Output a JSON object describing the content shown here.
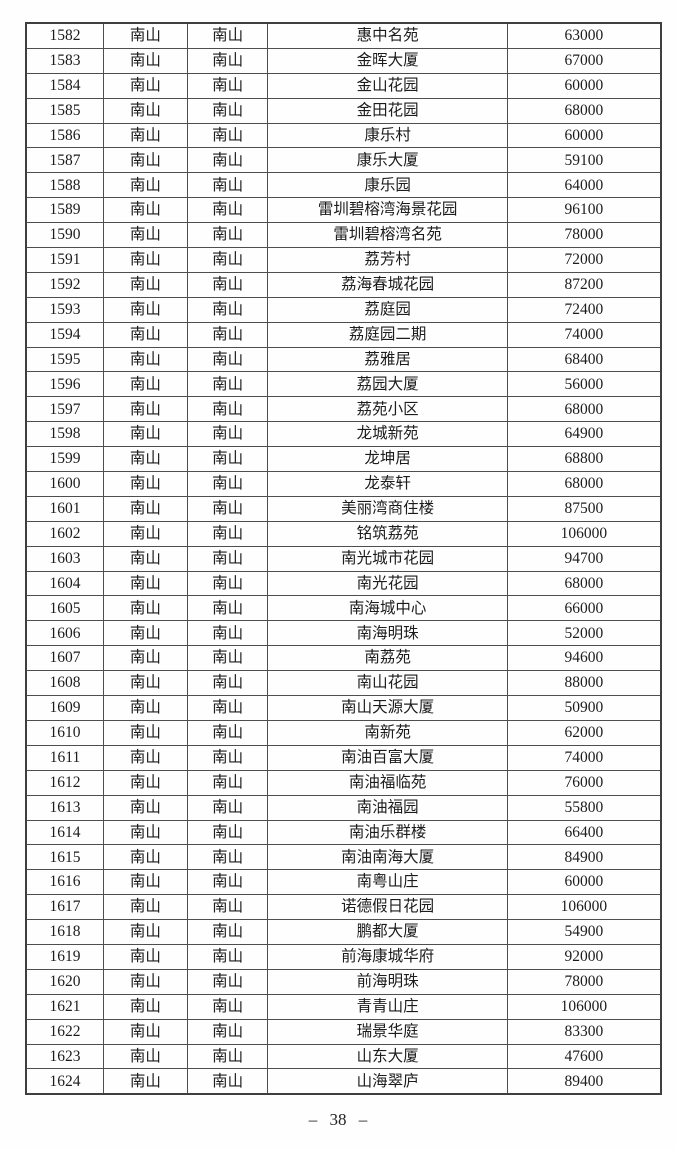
{
  "page": {
    "footer": "– 38 –"
  },
  "table": {
    "rows": [
      {
        "id": "1582",
        "district": "南山",
        "subdistrict": "南山",
        "name": "惠中名苑",
        "price": "63000"
      },
      {
        "id": "1583",
        "district": "南山",
        "subdistrict": "南山",
        "name": "金晖大厦",
        "price": "67000"
      },
      {
        "id": "1584",
        "district": "南山",
        "subdistrict": "南山",
        "name": "金山花园",
        "price": "60000"
      },
      {
        "id": "1585",
        "district": "南山",
        "subdistrict": "南山",
        "name": "金田花园",
        "price": "68000"
      },
      {
        "id": "1586",
        "district": "南山",
        "subdistrict": "南山",
        "name": "康乐村",
        "price": "60000"
      },
      {
        "id": "1587",
        "district": "南山",
        "subdistrict": "南山",
        "name": "康乐大厦",
        "price": "59100"
      },
      {
        "id": "1588",
        "district": "南山",
        "subdistrict": "南山",
        "name": "康乐园",
        "price": "64000"
      },
      {
        "id": "1589",
        "district": "南山",
        "subdistrict": "南山",
        "name": "雷圳碧榕湾海景花园",
        "price": "96100"
      },
      {
        "id": "1590",
        "district": "南山",
        "subdistrict": "南山",
        "name": "雷圳碧榕湾名苑",
        "price": "78000"
      },
      {
        "id": "1591",
        "district": "南山",
        "subdistrict": "南山",
        "name": "荔芳村",
        "price": "72000"
      },
      {
        "id": "1592",
        "district": "南山",
        "subdistrict": "南山",
        "name": "荔海春城花园",
        "price": "87200"
      },
      {
        "id": "1593",
        "district": "南山",
        "subdistrict": "南山",
        "name": "荔庭园",
        "price": "72400"
      },
      {
        "id": "1594",
        "district": "南山",
        "subdistrict": "南山",
        "name": "荔庭园二期",
        "price": "74000"
      },
      {
        "id": "1595",
        "district": "南山",
        "subdistrict": "南山",
        "name": "荔雅居",
        "price": "68400"
      },
      {
        "id": "1596",
        "district": "南山",
        "subdistrict": "南山",
        "name": "荔园大厦",
        "price": "56000"
      },
      {
        "id": "1597",
        "district": "南山",
        "subdistrict": "南山",
        "name": "荔苑小区",
        "price": "68000"
      },
      {
        "id": "1598",
        "district": "南山",
        "subdistrict": "南山",
        "name": "龙城新苑",
        "price": "64900"
      },
      {
        "id": "1599",
        "district": "南山",
        "subdistrict": "南山",
        "name": "龙坤居",
        "price": "68800"
      },
      {
        "id": "1600",
        "district": "南山",
        "subdistrict": "南山",
        "name": "龙泰轩",
        "price": "68000"
      },
      {
        "id": "1601",
        "district": "南山",
        "subdistrict": "南山",
        "name": "美丽湾商住楼",
        "price": "87500"
      },
      {
        "id": "1602",
        "district": "南山",
        "subdistrict": "南山",
        "name": "铭筑荔苑",
        "price": "106000"
      },
      {
        "id": "1603",
        "district": "南山",
        "subdistrict": "南山",
        "name": "南光城市花园",
        "price": "94700"
      },
      {
        "id": "1604",
        "district": "南山",
        "subdistrict": "南山",
        "name": "南光花园",
        "price": "68000"
      },
      {
        "id": "1605",
        "district": "南山",
        "subdistrict": "南山",
        "name": "南海城中心",
        "price": "66000"
      },
      {
        "id": "1606",
        "district": "南山",
        "subdistrict": "南山",
        "name": "南海明珠",
        "price": "52000"
      },
      {
        "id": "1607",
        "district": "南山",
        "subdistrict": "南山",
        "name": "南荔苑",
        "price": "94600"
      },
      {
        "id": "1608",
        "district": "南山",
        "subdistrict": "南山",
        "name": "南山花园",
        "price": "88000"
      },
      {
        "id": "1609",
        "district": "南山",
        "subdistrict": "南山",
        "name": "南山天源大厦",
        "price": "50900"
      },
      {
        "id": "1610",
        "district": "南山",
        "subdistrict": "南山",
        "name": "南新苑",
        "price": "62000"
      },
      {
        "id": "1611",
        "district": "南山",
        "subdistrict": "南山",
        "name": "南油百富大厦",
        "price": "74000"
      },
      {
        "id": "1612",
        "district": "南山",
        "subdistrict": "南山",
        "name": "南油福临苑",
        "price": "76000"
      },
      {
        "id": "1613",
        "district": "南山",
        "subdistrict": "南山",
        "name": "南油福园",
        "price": "55800"
      },
      {
        "id": "1614",
        "district": "南山",
        "subdistrict": "南山",
        "name": "南油乐群楼",
        "price": "66400"
      },
      {
        "id": "1615",
        "district": "南山",
        "subdistrict": "南山",
        "name": "南油南海大厦",
        "price": "84900"
      },
      {
        "id": "1616",
        "district": "南山",
        "subdistrict": "南山",
        "name": "南粤山庄",
        "price": "60000"
      },
      {
        "id": "1617",
        "district": "南山",
        "subdistrict": "南山",
        "name": "诺德假日花园",
        "price": "106000"
      },
      {
        "id": "1618",
        "district": "南山",
        "subdistrict": "南山",
        "name": "鹏都大厦",
        "price": "54900"
      },
      {
        "id": "1619",
        "district": "南山",
        "subdistrict": "南山",
        "name": "前海康城华府",
        "price": "92000"
      },
      {
        "id": "1620",
        "district": "南山",
        "subdistrict": "南山",
        "name": "前海明珠",
        "price": "78000"
      },
      {
        "id": "1621",
        "district": "南山",
        "subdistrict": "南山",
        "name": "青青山庄",
        "price": "106000"
      },
      {
        "id": "1622",
        "district": "南山",
        "subdistrict": "南山",
        "name": "瑞景华庭",
        "price": "83300"
      },
      {
        "id": "1623",
        "district": "南山",
        "subdistrict": "南山",
        "name": "山东大厦",
        "price": "47600"
      },
      {
        "id": "1624",
        "district": "南山",
        "subdistrict": "南山",
        "name": "山海翠庐",
        "price": "89400"
      }
    ]
  }
}
